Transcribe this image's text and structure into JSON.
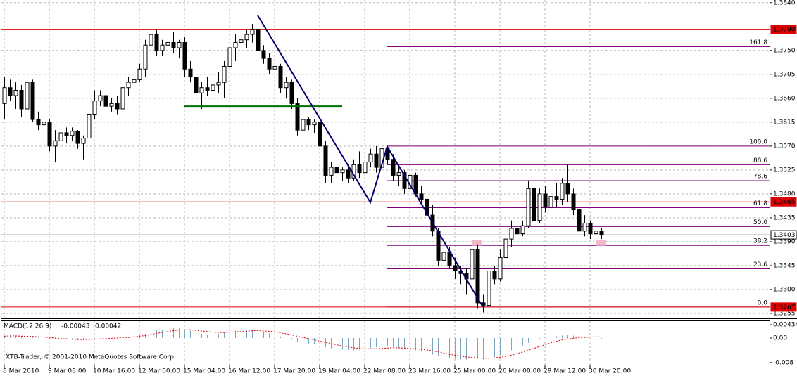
{
  "chart_data": [
    {
      "type": "candlestick",
      "categories": [
        "8 Mar 2010",
        null,
        null,
        null,
        null,
        null,
        null,
        null,
        "9 Mar 08:00",
        null,
        null,
        null,
        null,
        null,
        null,
        null,
        "10 Mar 16:00",
        null,
        null,
        null,
        null,
        null,
        null,
        null,
        "12 Mar 00:00",
        null,
        null,
        null,
        null,
        null,
        null,
        null,
        "15 Mar 04:00",
        null,
        null,
        null,
        null,
        null,
        null,
        null,
        "16 Mar 12:00",
        null,
        null,
        null,
        null,
        null,
        null,
        null,
        "17 Mar 20:00",
        null,
        null,
        null,
        null,
        null,
        null,
        null,
        "19 Mar 04:00",
        null,
        null,
        null,
        null,
        null,
        null,
        null,
        "22 Mar 08:00",
        null,
        null,
        null,
        null,
        null,
        null,
        null,
        "23 Mar 16:00",
        null,
        null,
        null,
        null,
        null,
        null,
        null,
        "25 Mar 00:00",
        null,
        null,
        null,
        null,
        null,
        null,
        null,
        "26 Mar 08:00",
        null,
        null,
        null,
        null,
        null,
        null,
        null,
        "29 Mar 12:00",
        null,
        null,
        null,
        null,
        null,
        null,
        null,
        "30 Mar 20:00",
        null,
        null
      ],
      "candles": [
        [
          1.365,
          1.37,
          1.362,
          1.368
        ],
        [
          1.368,
          1.3695,
          1.3655,
          1.3665
        ],
        [
          1.3665,
          1.369,
          1.364,
          1.3675
        ],
        [
          1.3675,
          1.3685,
          1.3625,
          1.364
        ],
        [
          1.364,
          1.37,
          1.363,
          1.369
        ],
        [
          1.369,
          1.3695,
          1.3615,
          1.362
        ],
        [
          1.362,
          1.3635,
          1.36,
          1.361
        ],
        [
          1.361,
          1.3625,
          1.359,
          1.3615
        ],
        [
          1.3615,
          1.362,
          1.356,
          1.357
        ],
        [
          1.357,
          1.36,
          1.354,
          1.358
        ],
        [
          1.358,
          1.361,
          1.357,
          1.3595
        ],
        [
          1.3595,
          1.3605,
          1.3575,
          1.359
        ],
        [
          1.359,
          1.3605,
          1.358,
          1.3598
        ],
        [
          1.3598,
          1.36,
          1.3565,
          1.3575
        ],
        [
          1.3575,
          1.359,
          1.3545,
          1.3585
        ],
        [
          1.3585,
          1.364,
          1.358,
          1.363
        ],
        [
          1.363,
          1.3675,
          1.362,
          1.3655
        ],
        [
          1.3655,
          1.3675,
          1.3645,
          1.3665
        ],
        [
          1.3665,
          1.367,
          1.364,
          1.3645
        ],
        [
          1.3645,
          1.366,
          1.3635,
          1.365
        ],
        [
          1.365,
          1.3665,
          1.363,
          1.364
        ],
        [
          1.364,
          1.369,
          1.3635,
          1.368
        ],
        [
          1.368,
          1.37,
          1.3665,
          1.369
        ],
        [
          1.369,
          1.3705,
          1.3675,
          1.3695
        ],
        [
          1.3695,
          1.3725,
          1.369,
          1.3715
        ],
        [
          1.3715,
          1.377,
          1.37,
          1.376
        ],
        [
          1.376,
          1.3795,
          1.3725,
          1.378
        ],
        [
          1.378,
          1.379,
          1.374,
          1.375
        ],
        [
          1.375,
          1.377,
          1.374,
          1.376
        ],
        [
          1.376,
          1.3775,
          1.3745,
          1.3765
        ],
        [
          1.3765,
          1.3785,
          1.3745,
          1.3755
        ],
        [
          1.3755,
          1.377,
          1.3735,
          1.3765
        ],
        [
          1.3765,
          1.3775,
          1.37,
          1.3715
        ],
        [
          1.3715,
          1.373,
          1.369,
          1.37
        ],
        [
          1.37,
          1.371,
          1.3655,
          1.367
        ],
        [
          1.367,
          1.369,
          1.364,
          1.368
        ],
        [
          1.368,
          1.37,
          1.3665,
          1.3675
        ],
        [
          1.3675,
          1.369,
          1.366,
          1.3685
        ],
        [
          1.3685,
          1.371,
          1.367,
          1.369
        ],
        [
          1.369,
          1.373,
          1.366,
          1.372
        ],
        [
          1.372,
          1.377,
          1.371,
          1.3755
        ],
        [
          1.3755,
          1.378,
          1.373,
          1.3765
        ],
        [
          1.3765,
          1.3785,
          1.375,
          1.377
        ],
        [
          1.377,
          1.379,
          1.3755,
          1.378
        ],
        [
          1.378,
          1.38,
          1.3765,
          1.379
        ],
        [
          1.379,
          1.3816,
          1.374,
          1.375
        ],
        [
          1.375,
          1.376,
          1.3725,
          1.3735
        ],
        [
          1.3735,
          1.3745,
          1.3705,
          1.3715
        ],
        [
          1.3715,
          1.373,
          1.37,
          1.372
        ],
        [
          1.372,
          1.3725,
          1.367,
          1.368
        ],
        [
          1.368,
          1.37,
          1.366,
          1.369
        ],
        [
          1.369,
          1.3695,
          1.364,
          1.365
        ],
        [
          1.365,
          1.366,
          1.359,
          1.36
        ],
        [
          1.36,
          1.3625,
          1.359,
          1.362
        ],
        [
          1.362,
          1.3625,
          1.36,
          1.361
        ],
        [
          1.361,
          1.362,
          1.3595,
          1.3615
        ],
        [
          1.3615,
          1.362,
          1.356,
          1.357
        ],
        [
          1.357,
          1.358,
          1.35,
          1.3515
        ],
        [
          1.3515,
          1.354,
          1.35,
          1.353
        ],
        [
          1.353,
          1.3545,
          1.3515,
          1.352
        ],
        [
          1.352,
          1.353,
          1.3505,
          1.3525
        ],
        [
          1.3525,
          1.3535,
          1.35,
          1.351
        ],
        [
          1.351,
          1.3545,
          1.3505,
          1.3535
        ],
        [
          1.3535,
          1.356,
          1.351,
          1.352
        ],
        [
          1.352,
          1.355,
          1.351,
          1.354
        ],
        [
          1.354,
          1.3565,
          1.353,
          1.3555
        ],
        [
          1.3555,
          1.357,
          1.352,
          1.353
        ],
        [
          1.353,
          1.3572,
          1.3525,
          1.3565
        ],
        [
          1.3565,
          1.357,
          1.3535,
          1.3545
        ],
        [
          1.3545,
          1.3555,
          1.3505,
          1.3515
        ],
        [
          1.3515,
          1.353,
          1.3495,
          1.352
        ],
        [
          1.352,
          1.3525,
          1.348,
          1.349
        ],
        [
          1.349,
          1.3525,
          1.3475,
          1.3515
        ],
        [
          1.3515,
          1.352,
          1.3475,
          1.348
        ],
        [
          1.348,
          1.3495,
          1.346,
          1.347
        ],
        [
          1.347,
          1.3485,
          1.343,
          1.344
        ],
        [
          1.344,
          1.346,
          1.34,
          1.341
        ],
        [
          1.341,
          1.3415,
          1.3345,
          1.3355
        ],
        [
          1.3355,
          1.338,
          1.335,
          1.337
        ],
        [
          1.337,
          1.338,
          1.334,
          1.3345
        ],
        [
          1.3345,
          1.336,
          1.332,
          1.3335
        ],
        [
          1.3335,
          1.3345,
          1.331,
          1.333
        ],
        [
          1.333,
          1.334,
          1.329,
          1.332
        ],
        [
          1.332,
          1.3385,
          1.331,
          1.3375
        ],
        [
          1.3375,
          1.3385,
          1.3265,
          1.3275
        ],
        [
          1.3275,
          1.329,
          1.3257,
          1.327
        ],
        [
          1.327,
          1.3345,
          1.3265,
          1.3335
        ],
        [
          1.3335,
          1.3345,
          1.331,
          1.332
        ],
        [
          1.332,
          1.3375,
          1.3315,
          1.336
        ],
        [
          1.336,
          1.34,
          1.3345,
          1.3395
        ],
        [
          1.3395,
          1.343,
          1.338,
          1.3415
        ],
        [
          1.3415,
          1.343,
          1.339,
          1.3405
        ],
        [
          1.3405,
          1.343,
          1.34,
          1.342
        ],
        [
          1.342,
          1.3505,
          1.3415,
          1.349
        ],
        [
          1.349,
          1.35,
          1.342,
          1.343
        ],
        [
          1.343,
          1.349,
          1.3425,
          1.348
        ],
        [
          1.348,
          1.3495,
          1.3445,
          1.3455
        ],
        [
          1.3455,
          1.349,
          1.3445,
          1.3475
        ],
        [
          1.3475,
          1.35,
          1.3455,
          1.347
        ],
        [
          1.347,
          1.351,
          1.346,
          1.35
        ],
        [
          1.35,
          1.3535,
          1.3465,
          1.348
        ],
        [
          1.348,
          1.349,
          1.344,
          1.345
        ],
        [
          1.345,
          1.3455,
          1.34,
          1.341
        ],
        [
          1.341,
          1.344,
          1.34,
          1.3425
        ],
        [
          1.3425,
          1.343,
          1.3395,
          1.3405
        ],
        [
          1.3405,
          1.342,
          1.3385,
          1.341
        ],
        [
          1.341,
          1.3415,
          1.3395,
          1.3403
        ]
      ],
      "ylim": [
        1.3247,
        1.3845
      ],
      "yticks": [
        1.3255,
        {
          "value": 1.33,
          "label": "1.3300"
        },
        1.3345,
        {
          "value": 1.339,
          "label": "1.3390"
        },
        1.3435,
        {
          "value": 1.348,
          "label": "1.3480"
        },
        1.3525,
        {
          "value": 1.357,
          "label": "1.3570"
        },
        1.3615,
        {
          "value": 1.366,
          "label": "1.3660"
        },
        1.3705,
        {
          "value": 1.375,
          "label": "1.3750"
        },
        {
          "value": 1.384,
          "label": "1.3840"
        }
      ],
      "grid": true,
      "levels": [
        {
          "value": 1.379,
          "label": "1.3790",
          "color": "#e00000"
        },
        {
          "value": 1.3465,
          "label": "1.3465",
          "color": "#e00000"
        },
        {
          "value": 1.3403,
          "label": "1.3403",
          "color": "#8c8cb4"
        },
        {
          "value": 1.3267,
          "label": "1.3267",
          "color": "#e00000"
        }
      ],
      "fibonacci": {
        "color": "#800080",
        "start": 68,
        "levels": [
          {
            "value": 1.3757,
            "label": "161.8"
          },
          {
            "value": 1.357,
            "label": "100.0"
          },
          {
            "value": 1.3535,
            "label": "88.6"
          },
          {
            "value": 1.3505,
            "label": "78.6"
          },
          {
            "value": 1.3454,
            "label": "61.8"
          },
          {
            "value": 1.34185,
            "label": "50.0"
          },
          {
            "value": 1.3383,
            "label": "38.2"
          },
          {
            "value": 1.3339,
            "label": "23.6"
          },
          {
            "value": 1.3267,
            "label": "0.0"
          }
        ]
      },
      "trendline": {
        "color": "#00006e",
        "x": [
          45,
          65,
          68,
          85
        ],
        "values": [
          1.3816,
          1.3464,
          1.3569,
          1.3267
        ]
      },
      "support": {
        "color": "#007000",
        "x": [
          32,
          60
        ],
        "values": [
          1.3645,
          1.3645
        ]
      },
      "highlights": {
        "color": "#f4b8c8",
        "x": [
          84,
          106
        ],
        "values": [
          1.3388,
          1.3388
        ]
      }
    },
    {
      "type": "macd",
      "title": "MACD(12,26,9)",
      "current": [
        -0.00043,
        0.00042
      ],
      "series": [
        {
          "color": "#7aa6c2",
          "values": [
            0.0008,
            0.0007,
            0.0006,
            0.0005,
            0.0005,
            0.0004,
            0.0002,
            0,
            -0.0002,
            -0.0004,
            -0.0005,
            -0.0005,
            -0.0005,
            -0.0006,
            -0.0006,
            -0.0004,
            -0.0002,
            -0.0001,
            0,
            0,
            0,
            0.0002,
            0.0004,
            0.0006,
            0.0009,
            0.0014,
            0.002,
            0.0026,
            0.0028,
            0.003,
            0.0032,
            0.0032,
            0.0028,
            0.0024,
            0.0018,
            0.0014,
            0.0012,
            0.0012,
            0.0013,
            0.0018,
            0.0022,
            0.0024,
            0.0026,
            0.0027,
            0.0028,
            0.0024,
            0.002,
            0.0015,
            0.001,
            0.0005,
            0,
            -0.0005,
            -0.0012,
            -0.0016,
            -0.0018,
            -0.002,
            -0.0024,
            -0.003,
            -0.0034,
            -0.0037,
            -0.0038,
            -0.0039,
            -0.004,
            -0.0038,
            -0.0036,
            -0.0033,
            -0.003,
            -0.0028,
            -0.0027,
            -0.003,
            -0.0032,
            -0.0035,
            -0.0037,
            -0.004,
            -0.0044,
            -0.0048,
            -0.0054,
            -0.006,
            -0.0064,
            -0.0066,
            -0.0068,
            -0.007,
            -0.007,
            -0.0066,
            -0.0068,
            -0.007,
            -0.0066,
            -0.0062,
            -0.0056,
            -0.0048,
            -0.004,
            -0.0032,
            -0.0025,
            -0.0016,
            -0.001,
            -0.0004,
            0,
            0.0003,
            0.0005,
            0.0008,
            0.001,
            0.0008,
            0.0005,
            0.0002,
            0,
            -0.0002,
            -0.0004
          ]
        },
        {
          "color": "#e00000",
          "values": [
            0.0006,
            0.0007,
            0.0007,
            0.0006,
            0.0006,
            0.0005,
            0.0004,
            0.0003,
            0.0002,
            0,
            -0.0002,
            -0.0003,
            -0.0004,
            -0.0005,
            -0.0005,
            -0.0005,
            -0.0004,
            -0.0003,
            -0.0002,
            -0.0001,
            0,
            0.0001,
            0.0002,
            0.0004,
            0.0006,
            0.0008,
            0.0011,
            0.0015,
            0.0018,
            0.0021,
            0.0024,
            0.0026,
            0.0027,
            0.0027,
            0.0025,
            0.0023,
            0.0021,
            0.0019,
            0.0018,
            0.0018,
            0.0019,
            0.002,
            0.0021,
            0.0022,
            0.0024,
            0.0024,
            0.0023,
            0.0022,
            0.002,
            0.0017,
            0.0014,
            0.001,
            0.0006,
            0.0002,
            -0.0002,
            -0.0006,
            -0.001,
            -0.0014,
            -0.0018,
            -0.0022,
            -0.0026,
            -0.0029,
            -0.0032,
            -0.0034,
            -0.0035,
            -0.0035,
            -0.0035,
            -0.0034,
            -0.0033,
            -0.0032,
            -0.0032,
            -0.0033,
            -0.0034,
            -0.0035,
            -0.0037,
            -0.0039,
            -0.0042,
            -0.0045,
            -0.0049,
            -0.0053,
            -0.0056,
            -0.0059,
            -0.0062,
            -0.0063,
            -0.0065,
            -0.0066,
            -0.0066,
            -0.0065,
            -0.0063,
            -0.006,
            -0.0056,
            -0.0051,
            -0.0046,
            -0.004,
            -0.0034,
            -0.0028,
            -0.0022,
            -0.0016,
            -0.0011,
            -0.0006,
            -0.0003,
            -0.0001,
            0.0001,
            0.0002,
            0.0003,
            0.0004,
            0.0004
          ]
        }
      ],
      "ylim": [
        -0.0085,
        0.0055
      ],
      "yticks": [
        0.00434,
        {
          "value": 0,
          "label": "0.00"
        },
        -0.008
      ]
    }
  ],
  "watermark": "XTB-Trader, © 2001-2010 MetaQuotes Software Corp."
}
